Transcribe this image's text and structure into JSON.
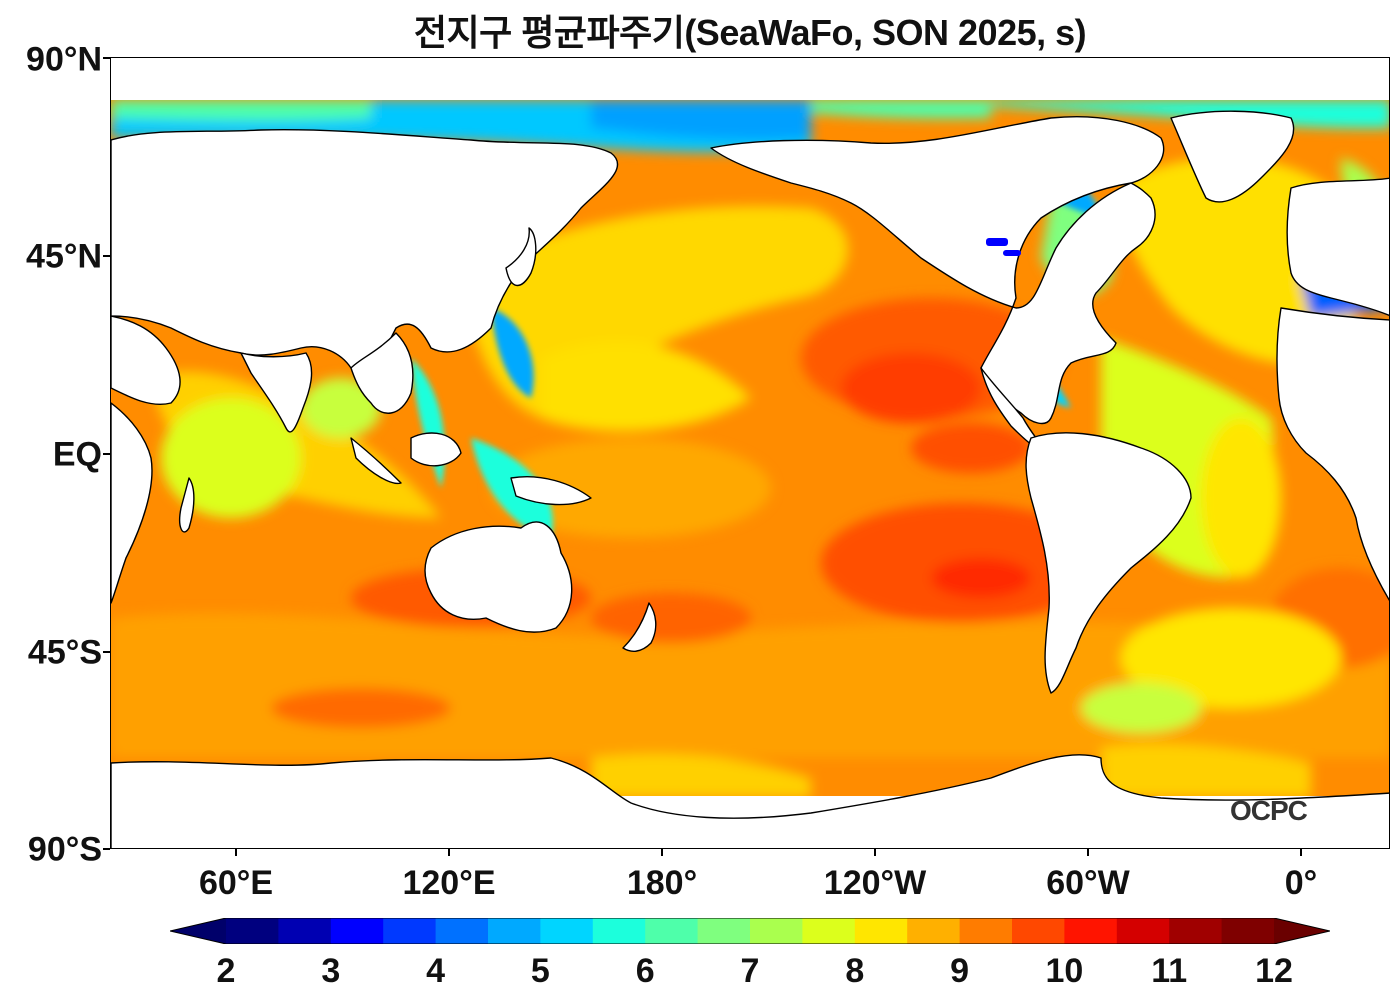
{
  "title": "전지구 평균파주기(SeaWaFo, SON 2025, s)",
  "watermark": "OCPC",
  "lat_labels": [
    "90°N",
    "45°N",
    "EQ",
    "45°S",
    "90°S"
  ],
  "lon_labels": [
    "60°E",
    "120°E",
    "180°",
    "120°W",
    "60°W",
    "0°"
  ],
  "colorbar": {
    "ticks": [
      "2",
      "3",
      "4",
      "5",
      "6",
      "7",
      "8",
      "9",
      "10",
      "11",
      "12"
    ],
    "colors": [
      "#00007f",
      "#0000b2",
      "#0000ff",
      "#0039ff",
      "#0071ff",
      "#00a9ff",
      "#00d5ff",
      "#1cffdc",
      "#4effaa",
      "#7fff7f",
      "#aaff4e",
      "#dcff1c",
      "#ffe600",
      "#ffb000",
      "#ff7c00",
      "#ff4800",
      "#ff1400",
      "#d40000",
      "#a00000",
      "#7f0000"
    ],
    "under_color": "#00006a",
    "over_color": "#6a0000"
  },
  "map_colors": {
    "land": "#ffffff",
    "coast": "#000000",
    "ocean_base": "#ff9e00"
  }
}
